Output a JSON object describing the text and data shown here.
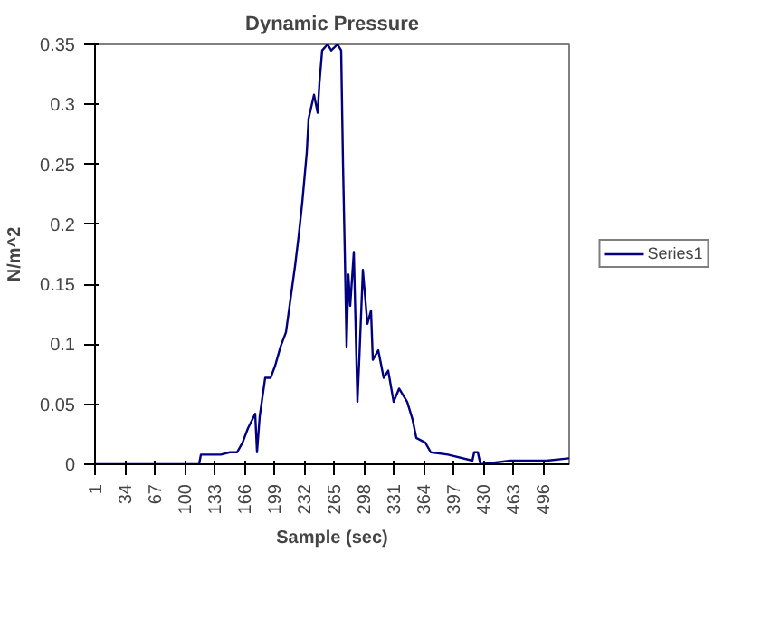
{
  "chart_data": {
    "type": "line",
    "title": "Dynamic Pressure",
    "xlabel": "Sample (sec)",
    "ylabel": "N/m^2",
    "xlim": [
      1,
      525
    ],
    "xticks": [
      1,
      34,
      67,
      100,
      133,
      166,
      199,
      232,
      265,
      298,
      331,
      364,
      397,
      430,
      463,
      496
    ],
    "ylim": [
      0,
      0.35
    ],
    "yticks": [
      0,
      0.05,
      0.1,
      0.15,
      0.2,
      0.25,
      0.3,
      0.35
    ],
    "grid": false,
    "legend": "right",
    "marker": "none",
    "line_style": "solid",
    "series": [
      {
        "name": "Series1",
        "color": "#000080",
        "x": [
          1,
          116,
          118,
          140,
          150,
          158,
          164,
          170,
          178,
          180,
          183,
          189,
          195,
          200,
          206,
          212,
          218,
          222,
          226,
          230,
          235,
          237,
          243,
          247,
          249,
          252,
          258,
          262,
          269,
          273,
          275,
          277,
          279,
          281,
          283,
          287,
          291,
          293,
          297,
          302,
          306,
          308,
          314,
          320,
          325,
          331,
          337,
          346,
          352,
          356,
          366,
          372,
          391,
          418,
          420,
          424,
          427,
          460,
          500,
          525
        ],
        "values": [
          0,
          0,
          0.008,
          0.008,
          0.01,
          0.01,
          0.018,
          0.03,
          0.042,
          0.01,
          0.04,
          0.072,
          0.072,
          0.082,
          0.098,
          0.11,
          0.143,
          0.165,
          0.19,
          0.218,
          0.26,
          0.288,
          0.308,
          0.293,
          0.318,
          0.345,
          0.35,
          0.345,
          0.35,
          0.345,
          0.252,
          0.177,
          0.098,
          0.158,
          0.132,
          0.177,
          0.052,
          0.087,
          0.162,
          0.117,
          0.128,
          0.087,
          0.095,
          0.072,
          0.078,
          0.052,
          0.063,
          0.052,
          0.037,
          0.022,
          0.018,
          0.01,
          0.008,
          0.003,
          0.01,
          0.01,
          0,
          0.003,
          0.003,
          0.005
        ]
      }
    ]
  }
}
